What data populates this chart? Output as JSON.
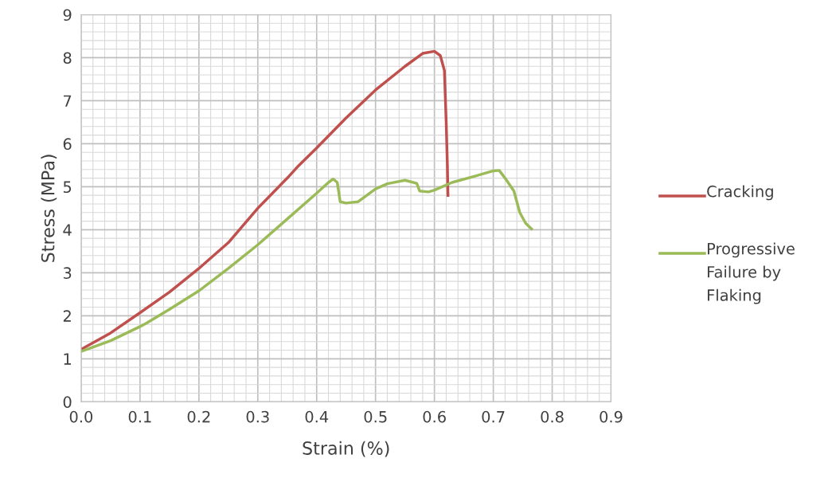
{
  "chart_data": {
    "type": "line",
    "xlabel": "Strain (%)",
    "ylabel": "Stress (MPa)",
    "xlim": [
      0,
      0.9
    ],
    "xticks": [
      {
        "value": 0,
        "label": "0.0"
      },
      {
        "value": 0.1,
        "label": "0.1"
      },
      {
        "value": 0.2,
        "label": "0.2"
      },
      {
        "value": 0.3,
        "label": "0.3"
      },
      {
        "value": 0.4,
        "label": "0.4"
      },
      {
        "value": 0.5,
        "label": "0.5"
      },
      {
        "value": 0.6,
        "label": "0.6"
      },
      {
        "value": 0.7,
        "label": "0.7"
      },
      {
        "value": 0.8,
        "label": "0.8"
      },
      {
        "value": 0.9,
        "label": "0.9"
      }
    ],
    "ylim": [
      0,
      9
    ],
    "yticks": [
      0,
      1,
      2,
      3,
      4,
      5,
      6,
      7,
      8,
      9
    ],
    "grid": true,
    "legend": "right",
    "marker": "none",
    "line_style": "solid",
    "series": [
      {
        "name": "Cracking",
        "color": "#c0504d",
        "x": [
          0,
          0.05,
          0.1,
          0.15,
          0.2,
          0.25,
          0.3,
          0.35,
          0.37,
          0.4,
          0.45,
          0.5,
          0.55,
          0.58,
          0.6,
          0.61,
          0.617,
          0.62,
          0.622,
          0.623
        ],
        "values": [
          1.22,
          1.6,
          2.07,
          2.55,
          3.1,
          3.7,
          4.5,
          5.2,
          5.5,
          5.9,
          6.6,
          7.25,
          7.8,
          8.1,
          8.15,
          8.05,
          7.7,
          6.5,
          5.5,
          4.8
        ]
      },
      {
        "name": "Progressive Failure by Flaking",
        "color": "#9bbb59",
        "x": [
          0,
          0.05,
          0.1,
          0.11,
          0.15,
          0.2,
          0.25,
          0.3,
          0.35,
          0.4,
          0.42,
          0.428,
          0.435,
          0.44,
          0.45,
          0.47,
          0.5,
          0.52,
          0.55,
          0.57,
          0.575,
          0.59,
          0.6,
          0.63,
          0.67,
          0.7,
          0.71,
          0.72,
          0.735,
          0.745,
          0.755,
          0.765
        ],
        "values": [
          1.17,
          1.42,
          1.75,
          1.82,
          2.15,
          2.58,
          3.1,
          3.65,
          4.25,
          4.85,
          5.1,
          5.18,
          5.1,
          4.65,
          4.62,
          4.65,
          4.95,
          5.07,
          5.15,
          5.08,
          4.9,
          4.88,
          4.92,
          5.1,
          5.25,
          5.37,
          5.38,
          5.2,
          4.9,
          4.4,
          4.15,
          4.02
        ]
      }
    ]
  }
}
